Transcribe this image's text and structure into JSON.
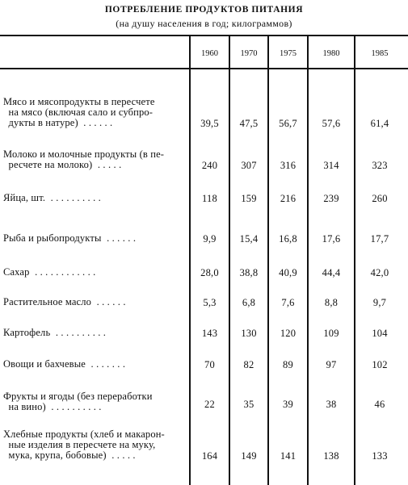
{
  "title": "ПОТРЕБЛЕНИЕ ПРОДУКТОВ ПИТАНИЯ",
  "subtitle": "(на душу населения в год; килограммов)",
  "years": [
    "1960",
    "1970",
    "1975",
    "1980",
    "1985"
  ],
  "rows": [
    {
      "label": "Мясо и мясопродукты в пересчете\n  на мясо (включая сало и субпро-\n  дукты в натуре)  . . . . . .",
      "values": [
        "39,5",
        "47,5",
        "56,7",
        "57,6",
        "61,4"
      ]
    },
    {
      "label": "Молоко и молочные продукты (в пе-\n  ресчете на молоко)  . . . . .",
      "values": [
        "240",
        "307",
        "316",
        "314",
        "323"
      ]
    },
    {
      "label": "Яйца, шт.  . . . . . . . . . .",
      "values": [
        "118",
        "159",
        "216",
        "239",
        "260"
      ]
    },
    {
      "label": "Рыба и рыбопродукты  . . . . . .",
      "values": [
        "9,9",
        "15,4",
        "16,8",
        "17,6",
        "17,7"
      ]
    },
    {
      "label": "Сахар  . . . . . . . . . . . .",
      "values": [
        "28,0",
        "38,8",
        "40,9",
        "44,4",
        "42,0"
      ]
    },
    {
      "label": "Растительное масло  . . . . . .",
      "values": [
        "5,3",
        "6,8",
        "7,6",
        "8,8",
        "9,7"
      ]
    },
    {
      "label": "Картофель  . . . . . . . . . .",
      "values": [
        "143",
        "130",
        "120",
        "109",
        "104"
      ]
    },
    {
      "label": "Овощи и бахчевые  . . . . . . .",
      "values": [
        "70",
        "82",
        "89",
        "97",
        "102"
      ]
    },
    {
      "label": "Фрукты и ягоды (без переработки\n  на вино)  . . . . . . . . . .",
      "values": [
        "22",
        "35",
        "39",
        "38",
        "46"
      ]
    },
    {
      "label": "Хлебные продукты (хлеб и макарон-\n  ные изделия в пересчете на муку,\n  мука, крупа, бобовые)  . . . . .",
      "values": [
        "164",
        "149",
        "141",
        "138",
        "133"
      ]
    }
  ]
}
